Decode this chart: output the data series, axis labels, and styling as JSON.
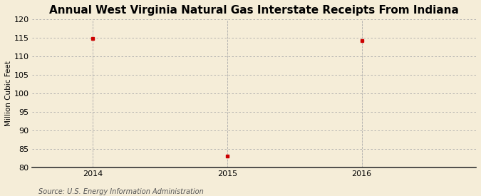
{
  "title": "Annual West Virginia Natural Gas Interstate Receipts From Indiana",
  "ylabel": "Million Cubic Feet",
  "source": "Source: U.S. Energy Information Administration",
  "x": [
    2014,
    2015,
    2016
  ],
  "y": [
    114.9,
    83.0,
    114.2
  ],
  "xlim": [
    2013.55,
    2016.85
  ],
  "ylim": [
    80,
    120
  ],
  "yticks": [
    80,
    85,
    90,
    95,
    100,
    105,
    110,
    115,
    120
  ],
  "xticks": [
    2014,
    2015,
    2016
  ],
  "marker_color": "#cc0000",
  "marker_size": 3.5,
  "grid_color": "#aaaaaa",
  "background_color": "#f5edd8",
  "title_fontsize": 11,
  "label_fontsize": 7.5,
  "tick_fontsize": 8,
  "source_fontsize": 7
}
